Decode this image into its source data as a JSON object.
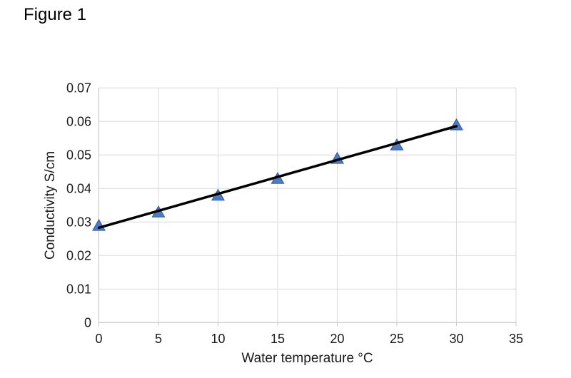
{
  "figure_label": "Figure 1",
  "chart_data": {
    "type": "scatter",
    "title": "",
    "xlabel": "Water temperature °C",
    "ylabel": "Conductivity S/cm",
    "x": [
      0,
      5,
      10,
      15,
      20,
      25,
      30
    ],
    "y": [
      0.029,
      0.033,
      0.038,
      0.043,
      0.049,
      0.053,
      0.059
    ],
    "trendline": {
      "type": "linear",
      "x": [
        0,
        30
      ],
      "y": [
        0.0283,
        0.0586
      ]
    },
    "xlim": [
      0,
      35
    ],
    "ylim": [
      0,
      0.07
    ],
    "xticks": [
      0,
      5,
      10,
      15,
      20,
      25,
      30,
      35
    ],
    "xtick_labels": [
      "0",
      "5",
      "10",
      "15",
      "20",
      "25",
      "30",
      "35"
    ],
    "yticks": [
      0,
      0.01,
      0.02,
      0.03,
      0.04,
      0.05,
      0.06,
      0.07
    ],
    "ytick_labels": [
      "0",
      "0.01",
      "0.02",
      "0.03",
      "0.04",
      "0.05",
      "0.06",
      "0.07"
    ],
    "grid": true,
    "legend": "none",
    "marker": "triangle-up",
    "colors": {
      "marker_fill": "#4d7cc4",
      "marker_border": "#35609f",
      "trendline": "#000000",
      "gridline": "#d9d9d9",
      "axis_line": "#c3c3c3",
      "text": "#1a1a1a",
      "background": "#ffffff"
    }
  }
}
